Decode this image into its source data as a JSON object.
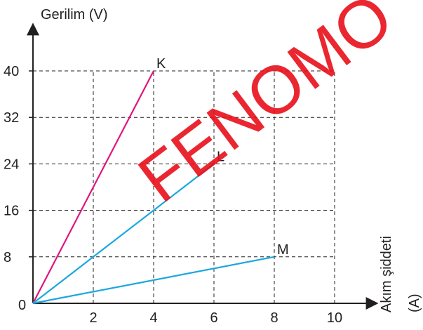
{
  "watermark": "FENOMO",
  "chart_data": {
    "type": "line",
    "xlabel_line1": "Akım şiddeti",
    "xlabel_line2": "(A)",
    "ylabel": "Gerilim (V)",
    "x_ticks": [
      2,
      4,
      6,
      8,
      10
    ],
    "y_ticks": [
      8,
      16,
      24,
      32,
      40
    ],
    "origin_label": "0",
    "xlim": [
      0,
      10
    ],
    "ylim": [
      0,
      40
    ],
    "grid": true,
    "series": [
      {
        "name": "K",
        "color": "#e0157f",
        "points": [
          [
            0,
            0
          ],
          [
            4,
            40
          ]
        ]
      },
      {
        "name": "L",
        "color": "#1aa7de",
        "points": [
          [
            0,
            0
          ],
          [
            6,
            24
          ]
        ]
      },
      {
        "name": "M",
        "color": "#1aa7de",
        "points": [
          [
            0,
            0
          ],
          [
            8,
            8
          ]
        ]
      }
    ]
  }
}
